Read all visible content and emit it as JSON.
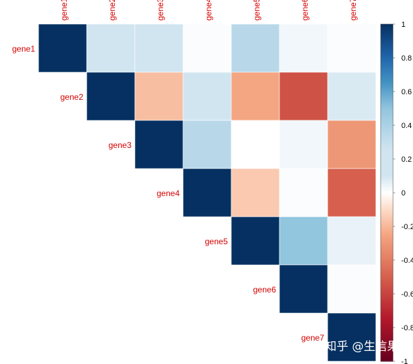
{
  "chart_data": {
    "type": "heatmap",
    "subtype": "correlation-upper-triangle",
    "variables": [
      "gene1",
      "gene2",
      "gene3",
      "gene4",
      "gene5",
      "gene6",
      "gene7"
    ],
    "matrix": [
      [
        1.0,
        0.18,
        0.15,
        0.01,
        0.35,
        0.03,
        0.01
      ],
      [
        null,
        1.0,
        -0.18,
        0.1,
        -0.25,
        -0.55,
        0.08
      ],
      [
        null,
        null,
        1.0,
        0.35,
        0.0,
        0.03,
        -0.3
      ],
      [
        null,
        null,
        null,
        1.0,
        -0.15,
        0.01,
        -0.5
      ],
      [
        null,
        null,
        null,
        null,
        1.0,
        0.5,
        0.05
      ],
      [
        null,
        null,
        null,
        null,
        null,
        1.0,
        0.01
      ],
      [
        null,
        null,
        null,
        null,
        null,
        null,
        1.0
      ]
    ],
    "colorbar": {
      "range": [
        -1,
        1
      ],
      "ticks": [
        "1",
        "0.8",
        "0.6",
        "0.4",
        "0.2",
        "0",
        "-0.2",
        "-0.4",
        "-0.6",
        "-0.8",
        "-1"
      ],
      "colors": {
        "neg": "#67001f",
        "mid": "#ffffff",
        "pos": "#053061"
      }
    },
    "label_color": "#d40000"
  },
  "watermark": "知乎 @生信果"
}
